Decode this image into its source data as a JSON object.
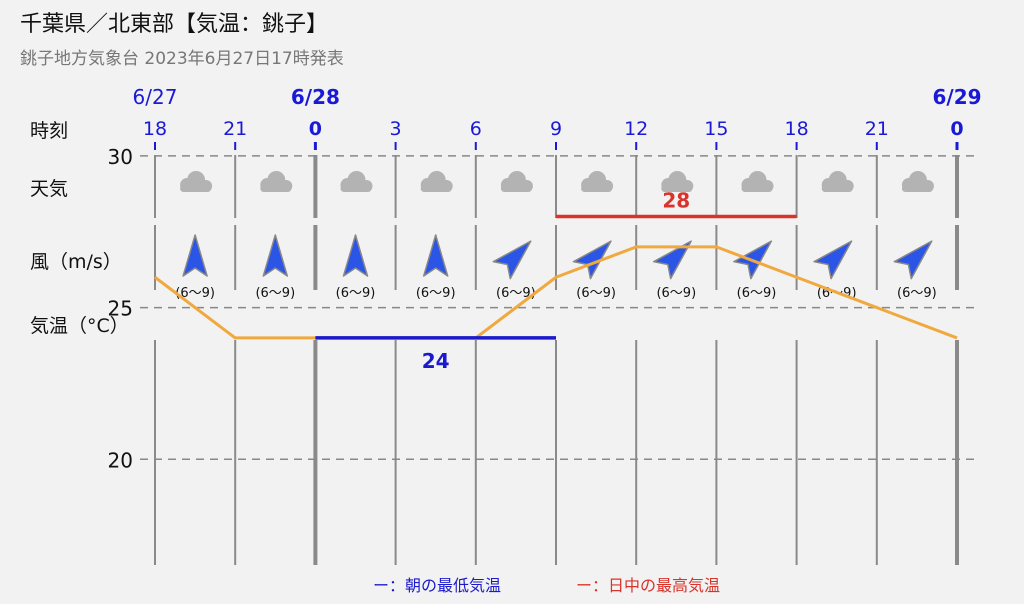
{
  "header": {
    "title": "千葉県／北東部【気温：銚子】",
    "subtitle": "銚子地方気象台 2023年6月27日17時発表"
  },
  "row_labels": {
    "time": "時刻",
    "weather": "天気",
    "wind": "風（m/s）",
    "temp": "気温（°C）"
  },
  "colors": {
    "date_blue": "#1a1ad6",
    "min_line": "#1a1acc",
    "max_line": "#d9342b",
    "temp_line": "#f0a93f",
    "wind_arrow": "#2b55e6",
    "cloud": "#b3b3b3",
    "grid": "#8a8a8a"
  },
  "chart_data": {
    "type": "line",
    "dates": [
      {
        "label": "6/27",
        "at_index": 0
      },
      {
        "label": "6/28",
        "at_index": 2
      },
      {
        "label": "6/29",
        "at_index": 10
      }
    ],
    "x": [
      "18",
      "21",
      "0",
      "3",
      "6",
      "9",
      "12",
      "15",
      "18",
      "21",
      "0"
    ],
    "weather": [
      "cloudy-icon",
      "cloudy-icon",
      "cloudy-icon",
      "cloudy-icon",
      "cloudy-icon",
      "cloudy-icon",
      "cloudy-icon",
      "cloudy-icon",
      "cloudy-icon",
      "cloudy-icon"
    ],
    "wind": [
      {
        "direction": "south",
        "speed": "(6〜9)"
      },
      {
        "direction": "south",
        "speed": "(6〜9)"
      },
      {
        "direction": "south",
        "speed": "(6〜9)"
      },
      {
        "direction": "south",
        "speed": "(6〜9)"
      },
      {
        "direction": "southwest",
        "speed": "(6〜9)"
      },
      {
        "direction": "southwest",
        "speed": "(6〜9)"
      },
      {
        "direction": "southwest",
        "speed": "(6〜9)"
      },
      {
        "direction": "southwest",
        "speed": "(6〜9)"
      },
      {
        "direction": "southwest",
        "speed": "(6〜9)"
      },
      {
        "direction": "southwest",
        "speed": "(6〜9)"
      }
    ],
    "series": [
      {
        "values": [
          26,
          24,
          24,
          24,
          24,
          26,
          27,
          27,
          26,
          25,
          24
        ]
      }
    ],
    "min_temp": {
      "value": 24,
      "label": "24",
      "from_index": 2,
      "to_index": 5
    },
    "max_temp": {
      "value": 28,
      "label": "28",
      "from_index": 5,
      "to_index": 8
    },
    "yticks": [
      20,
      25,
      30
    ],
    "ylim": [
      18,
      32.5
    ],
    "grid": true,
    "legend": {
      "position": "bottom-center",
      "items": [
        {
          "label": "ー：朝の最低気温",
          "color": "#1a1acc"
        },
        {
          "label": "ー：日中の最高気温",
          "color": "#d9342b"
        }
      ]
    }
  }
}
